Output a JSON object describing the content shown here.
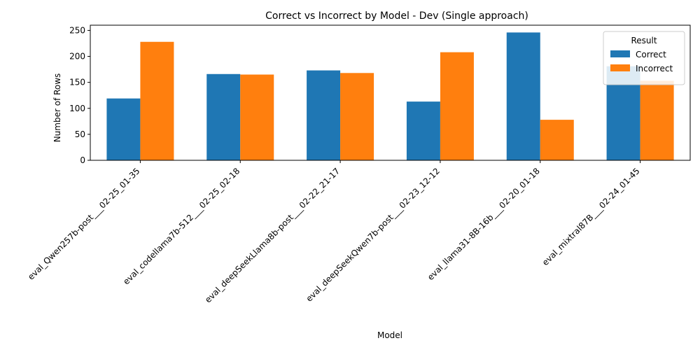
{
  "chart_data": {
    "type": "bar",
    "title": "Correct vs Incorrect by Model - Dev (Single approach)",
    "xlabel": "Model",
    "ylabel": "Number of Rows",
    "ylim": [
      0,
      260
    ],
    "yticks": [
      0,
      50,
      100,
      150,
      200,
      250
    ],
    "categories": [
      "eval_Qwen257b-post___02-25_01-35",
      "eval_codellama7b-512___02-25_02-18",
      "eval_deepSeekLlama8b-post___02-22_21-17",
      "eval_deepSeekQwen7b-post___02-23_12-12",
      "eval_llama31-8B-16b___02-20_01-18",
      "eval_mixtral87B___02-24_01-45"
    ],
    "series": [
      {
        "name": "Correct",
        "color": "#1f77b4",
        "values": [
          119,
          166,
          173,
          113,
          246,
          181
        ]
      },
      {
        "name": "Incorrect",
        "color": "#ff7f0e",
        "values": [
          228,
          165,
          168,
          208,
          78,
          153
        ]
      }
    ],
    "legend": {
      "title": "Result",
      "placement": "top-right"
    },
    "grid": false
  }
}
